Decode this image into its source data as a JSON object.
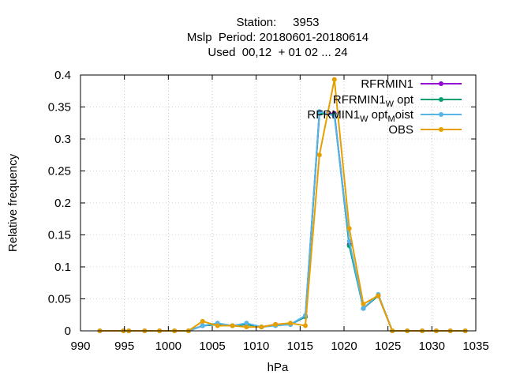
{
  "chart_data": {
    "type": "line",
    "title_lines": [
      "Station:     3953",
      "Mslp  Period: 20180601-20180614",
      "Used  00,12  + 01 02 ... 24"
    ],
    "xlabel": "hPa",
    "ylabel": "Relative frequency",
    "xlim": [
      990,
      1035
    ],
    "ylim": [
      0,
      0.4
    ],
    "xticks": [
      990,
      995,
      1000,
      1005,
      1010,
      1015,
      1020,
      1025,
      1030,
      1035
    ],
    "yticks": [
      0,
      0.05,
      0.1,
      0.15,
      0.2,
      0.25,
      0.3,
      0.35,
      0.4
    ],
    "ytick_labels": [
      "0",
      "0.05",
      "0.1",
      "0.15",
      "0.2",
      "0.25",
      "0.3",
      "0.35",
      "0.4"
    ],
    "grid": true,
    "legend_position": "top-right",
    "x": [
      992.2,
      994.9,
      995.5,
      997.3,
      999.0,
      1000.7,
      1002.3,
      1003.9,
      1005.6,
      1007.3,
      1008.9,
      1010.6,
      1012.2,
      1013.9,
      1015.6,
      1017.2,
      1018.9,
      1020.6,
      1022.2,
      1023.9,
      1025.5,
      1027.2,
      1028.9,
      1030.5,
      1032.1,
      1033.8
    ],
    "series": [
      {
        "name": "RFRMIN1",
        "base": "RFRMIN1",
        "subscript": "",
        "mid": "",
        "subscript2": "",
        "color": "#9400d3",
        "values": [
          0,
          0,
          0,
          0,
          0,
          0,
          0,
          0.008,
          0.01,
          0.008,
          0.01,
          0.006,
          0.01,
          0.01,
          0.022,
          0.34,
          0.34,
          0.135,
          0.035,
          0.055,
          0,
          0,
          0,
          0,
          0,
          0
        ]
      },
      {
        "name": "RFRMIN1_W opt",
        "base": "RFRMIN1",
        "subscript": "W",
        "mid": "opt",
        "subscript2": "",
        "color": "#009e73",
        "values": [
          0,
          0,
          0,
          0,
          0,
          0,
          0,
          0.008,
          0.01,
          0.008,
          0.01,
          0.006,
          0.009,
          0.01,
          0.022,
          0.34,
          0.338,
          0.133,
          0.035,
          0.055,
          0,
          0,
          0,
          0,
          0,
          0
        ]
      },
      {
        "name": "RFRMIN1_W opt_M oist",
        "base": "RFRMIN1",
        "subscript": "W",
        "mid": "opt",
        "subscript2": "M",
        "suffix": "oist",
        "color": "#56b4e9",
        "values": [
          0,
          0,
          0,
          0,
          0,
          0,
          0,
          0.008,
          0.012,
          0.008,
          0.012,
          0.006,
          0.008,
          0.01,
          0.024,
          0.343,
          0.336,
          0.14,
          0.035,
          0.057,
          0,
          0,
          0,
          0,
          0,
          0
        ]
      },
      {
        "name": "OBS",
        "base": "OBS",
        "subscript": "",
        "mid": "",
        "subscript2": "",
        "color": "#e69f00",
        "values": [
          0,
          0,
          0,
          0,
          0,
          0,
          0,
          0.015,
          0.008,
          0.008,
          0.006,
          0.006,
          0.01,
          0.012,
          0.008,
          0.275,
          0.393,
          0.16,
          0.042,
          0.055,
          0,
          0,
          0,
          0,
          0,
          0
        ]
      }
    ]
  }
}
